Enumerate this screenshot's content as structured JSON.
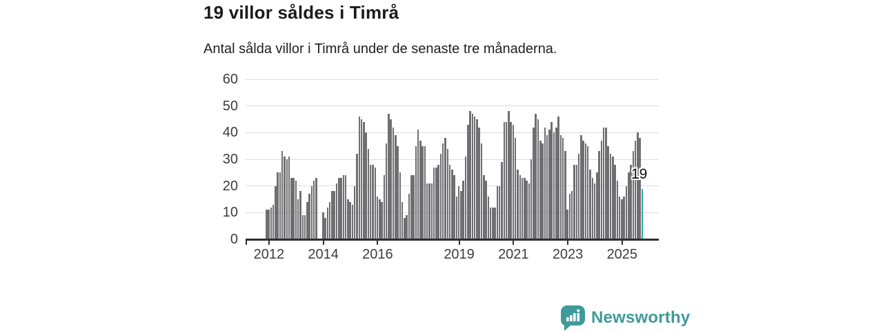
{
  "title": "19 villor såldes i Timrå",
  "subtitle": "Antal sålda villor i Timrå under de senaste tre månaderna.",
  "chart_data": {
    "type": "bar",
    "title": "19 villor såldes i Timrå",
    "subtitle": "Antal sålda villor i Timrå under de senaste tre månaderna.",
    "xlabel": "",
    "ylabel": "",
    "ylim": [
      0,
      60
    ],
    "yticks": [
      0,
      10,
      20,
      30,
      40,
      50,
      60
    ],
    "grid": true,
    "x_unit": "month",
    "x_start": "2011-12",
    "x_end": "2025-10",
    "x_ticks": [
      {
        "label": "2012",
        "index": 1
      },
      {
        "label": "2014",
        "index": 25
      },
      {
        "label": "2016",
        "index": 49
      },
      {
        "label": "2019",
        "index": 85
      },
      {
        "label": "2021",
        "index": 109
      },
      {
        "label": "2023",
        "index": 133
      },
      {
        "label": "2025",
        "index": 157
      }
    ],
    "values": [
      11,
      11,
      12,
      13,
      20,
      25,
      25,
      33,
      31,
      30,
      31,
      23,
      23,
      22,
      15,
      18,
      9,
      9,
      14,
      17,
      20,
      22,
      23,
      0,
      0,
      10,
      8,
      12,
      14,
      18,
      18,
      21,
      23,
      23,
      24,
      24,
      15,
      14,
      13,
      20,
      32,
      46,
      45,
      44,
      40,
      34,
      28,
      28,
      27,
      16,
      15,
      14,
      24,
      36,
      47,
      45,
      42,
      39,
      35,
      25,
      14,
      8,
      9,
      17,
      24,
      24,
      35,
      41,
      37,
      35,
      35,
      21,
      21,
      21,
      27,
      27,
      28,
      32,
      36,
      38,
      34,
      28,
      26,
      24,
      16,
      20,
      18,
      22,
      31,
      43,
      48,
      47,
      46,
      45,
      42,
      36,
      24,
      22,
      16,
      12,
      12,
      12,
      20,
      20,
      29,
      44,
      44,
      48,
      44,
      43,
      38,
      26,
      24,
      23,
      23,
      22,
      21,
      30,
      42,
      47,
      45,
      37,
      36,
      42,
      39,
      41,
      44,
      40,
      42,
      46,
      39,
      38,
      33,
      11,
      17,
      18,
      28,
      28,
      32,
      39,
      37,
      36,
      35,
      26,
      23,
      21,
      25,
      33,
      37,
      42,
      42,
      35,
      32,
      31,
      28,
      22,
      16,
      15,
      16,
      20,
      25,
      28,
      33,
      37,
      40,
      38,
      19
    ],
    "highlight": {
      "label": "19",
      "value": 19,
      "position": "last"
    },
    "colors": {
      "bar": "#6f6f73",
      "highlight_bar": "#2baaa0",
      "grid": "#dbdbdb",
      "axis": "#2f2f2f",
      "tick_text": "#3d3d3d",
      "title_text": "#1a1a1a"
    },
    "legend_position": "none"
  },
  "branding": {
    "logo_text": "Newsworthy",
    "logo_color": "#3e9b99",
    "logo_icon": "newsworthy-speech-bubble-bar-chart-icon"
  }
}
